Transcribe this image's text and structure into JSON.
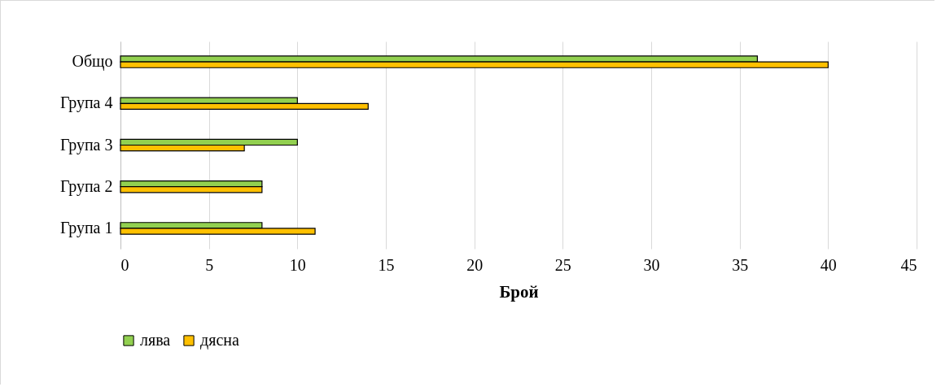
{
  "chart_data": {
    "type": "bar",
    "orientation": "horizontal",
    "categories": [
      "Общо",
      "Група 4",
      "Група 3",
      "Група 2",
      "Група 1"
    ],
    "series": [
      {
        "name": "лява",
        "color": "#92d050",
        "values": [
          36,
          10,
          10,
          8,
          8
        ]
      },
      {
        "name": "дясна",
        "color": "#ffc000",
        "values": [
          40,
          14,
          7,
          8,
          11
        ]
      }
    ],
    "xlabel": "Брой",
    "xlim": [
      0,
      45
    ],
    "xticks": [
      0,
      5,
      10,
      15,
      20,
      25,
      30,
      35,
      40,
      45
    ],
    "grid": "x",
    "legend": "bottom"
  }
}
